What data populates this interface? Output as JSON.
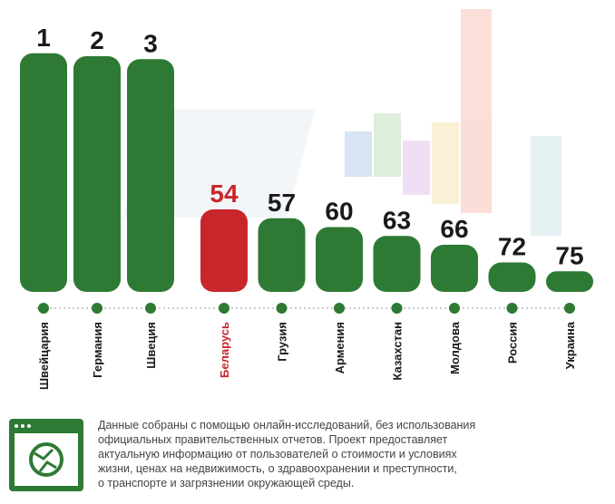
{
  "chart_data": {
    "type": "bar",
    "categories": [
      "Швейцария",
      "Германия",
      "Швеция",
      "Беларусь",
      "Грузия",
      "Армения",
      "Казахстан",
      "Молдова",
      "Россия",
      "Украина"
    ],
    "values": [
      1,
      2,
      3,
      54,
      57,
      60,
      63,
      66,
      72,
      75
    ],
    "colors": [
      "#2e7a34",
      "#2e7a34",
      "#2e7a34",
      "#c8262b",
      "#2e7a34",
      "#2e7a34",
      "#2e7a34",
      "#2e7a34",
      "#2e7a34",
      "#2e7a34"
    ],
    "label_colors": [
      "#1a1a1a",
      "#1a1a1a",
      "#1a1a1a",
      "#c8262b",
      "#1a1a1a",
      "#1a1a1a",
      "#1a1a1a",
      "#1a1a1a",
      "#1a1a1a",
      "#1a1a1a"
    ],
    "ylim": [
      82,
      0
    ]
  },
  "footer": {
    "lines": [
      "Данные собраны с помощью онлайн-исследований, без использования",
      "официальных правительственных отчетов. Проект предоставляет",
      "актуальную информацию от пользователей о стоимости и условиях",
      "жизни, ценах на недвижимость, о здравоохранении и преступности,",
      "о транспорте и загрязнении окружающей среды."
    ]
  }
}
